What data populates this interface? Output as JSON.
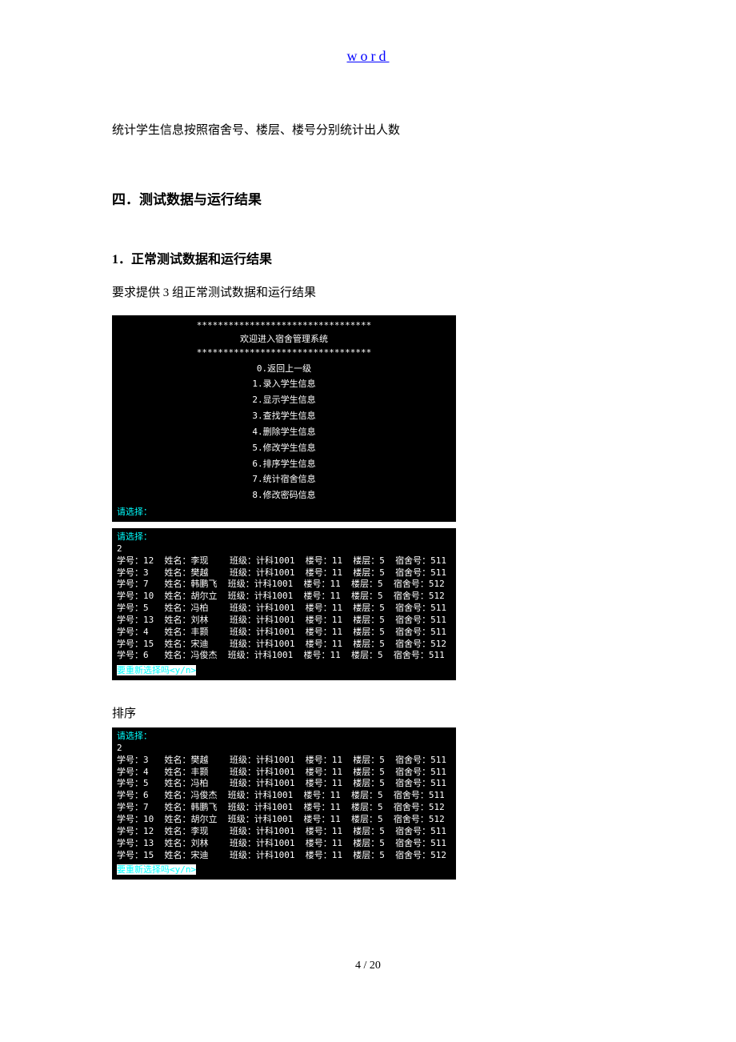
{
  "header_link": "word",
  "intro_para": "统计学生信息按照宿舍号、楼层、楼号分别统计出人数",
  "section4_title": "四．测试数据与运行结果",
  "section4_1_title": "1．正常测试数据和运行结果",
  "section4_1_para": "要求提供 3 组正常测试数据和运行结果",
  "menu": {
    "stars_top": "*********************************",
    "title": "欢迎进入宿舍管理系统",
    "stars_bottom": "*********************************",
    "items": [
      "0.返回上一级",
      "1.录入学生信息",
      "2.显示学生信息",
      "3.查找学生信息",
      "4.删除学生信息",
      "5.修改学生信息",
      "6.排序学生信息",
      "7.统计宿舍信息",
      "8.修改密码信息"
    ],
    "prompt": "请选择："
  },
  "table1": {
    "prompt": "请选择：",
    "choice": "2",
    "rows": [
      {
        "id": "12",
        "name": "李现",
        "cls": "计科1001",
        "bld": "11",
        "flr": "5",
        "dorm": "511"
      },
      {
        "id": "3",
        "name": "樊越",
        "cls": "计科1001",
        "bld": "11",
        "flr": "5",
        "dorm": "511"
      },
      {
        "id": "7",
        "name": "韩鹏飞",
        "cls": "计科1001",
        "bld": "11",
        "flr": "5",
        "dorm": "512"
      },
      {
        "id": "10",
        "name": "胡尔立",
        "cls": "计科1001",
        "bld": "11",
        "flr": "5",
        "dorm": "512"
      },
      {
        "id": "5",
        "name": "冯柏",
        "cls": "计科1001",
        "bld": "11",
        "flr": "5",
        "dorm": "511"
      },
      {
        "id": "13",
        "name": "刘林",
        "cls": "计科1001",
        "bld": "11",
        "flr": "5",
        "dorm": "511"
      },
      {
        "id": "4",
        "name": "丰颢",
        "cls": "计科1001",
        "bld": "11",
        "flr": "5",
        "dorm": "511"
      },
      {
        "id": "15",
        "name": "宋迪",
        "cls": "计科1001",
        "bld": "11",
        "flr": "5",
        "dorm": "512"
      },
      {
        "id": "6",
        "name": "冯俊杰",
        "cls": "计科1001",
        "bld": "11",
        "flr": "5",
        "dorm": "511"
      }
    ],
    "again": "要重新选择吗<y/n>"
  },
  "sort_label": "排序",
  "table2": {
    "prompt": "请选择：",
    "choice": "2",
    "rows": [
      {
        "id": "3",
        "name": "樊越",
        "cls": "计科1001",
        "bld": "11",
        "flr": "5",
        "dorm": "511"
      },
      {
        "id": "4",
        "name": "丰颢",
        "cls": "计科1001",
        "bld": "11",
        "flr": "5",
        "dorm": "511"
      },
      {
        "id": "5",
        "name": "冯柏",
        "cls": "计科1001",
        "bld": "11",
        "flr": "5",
        "dorm": "511"
      },
      {
        "id": "6",
        "name": "冯俊杰",
        "cls": "计科1001",
        "bld": "11",
        "flr": "5",
        "dorm": "511"
      },
      {
        "id": "7",
        "name": "韩鹏飞",
        "cls": "计科1001",
        "bld": "11",
        "flr": "5",
        "dorm": "512"
      },
      {
        "id": "10",
        "name": "胡尔立",
        "cls": "计科1001",
        "bld": "11",
        "flr": "5",
        "dorm": "512"
      },
      {
        "id": "12",
        "name": "李现",
        "cls": "计科1001",
        "bld": "11",
        "flr": "5",
        "dorm": "511"
      },
      {
        "id": "13",
        "name": "刘林",
        "cls": "计科1001",
        "bld": "11",
        "flr": "5",
        "dorm": "511"
      },
      {
        "id": "15",
        "name": "宋迪",
        "cls": "计科1001",
        "bld": "11",
        "flr": "5",
        "dorm": "512"
      }
    ],
    "again": "要重新选择吗<y/n>"
  },
  "labels": {
    "id": "学号：",
    "name": "姓名：",
    "cls": "班级：",
    "bld": "楼号：",
    "flr": "楼层：",
    "dorm": "宿舍号："
  },
  "footer": "4 / 20"
}
